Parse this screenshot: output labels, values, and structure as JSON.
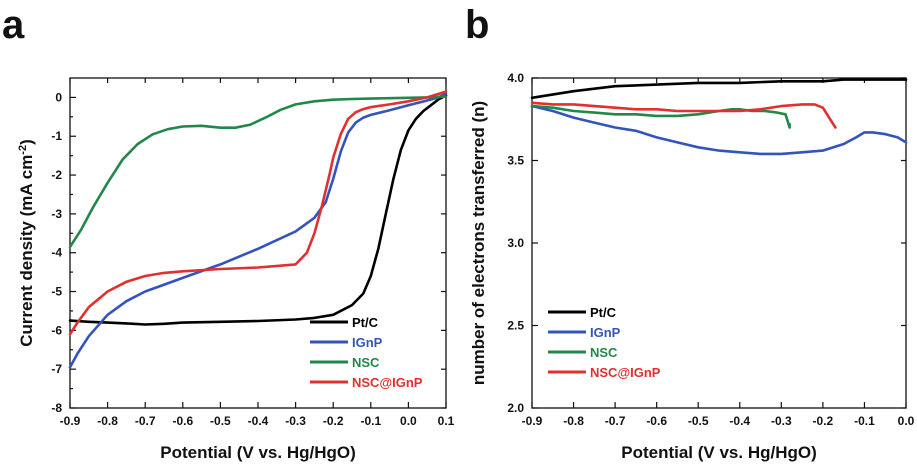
{
  "chart_data": [
    {
      "panel": "a",
      "type": "line",
      "xlabel": "Potential (V vs. Hg/HgO)",
      "ylabel": "Current density (mA cm",
      "ylabel_sup": "-2",
      "ylabel_close": ")",
      "xlim": [
        -0.9,
        0.1
      ],
      "ylim": [
        -8,
        0.5
      ],
      "xticks": [
        "-0.9",
        "-0.8",
        "-0.7",
        "-0.6",
        "-0.5",
        "-0.4",
        "-0.3",
        "-0.2",
        "-0.1",
        "0.0",
        "0.1"
      ],
      "yticks": [
        "0",
        "-1",
        "-2",
        "-3",
        "-4",
        "-5",
        "-6",
        "-7",
        "-8"
      ],
      "legend_position": "bottom-right",
      "series": [
        {
          "name": "Pt/C",
          "color": "#000000",
          "x": [
            -0.9,
            -0.85,
            -0.8,
            -0.75,
            -0.7,
            -0.65,
            -0.6,
            -0.5,
            -0.4,
            -0.3,
            -0.25,
            -0.2,
            -0.15,
            -0.12,
            -0.1,
            -0.08,
            -0.06,
            -0.04,
            -0.02,
            0.0,
            0.02,
            0.04,
            0.06,
            0.08,
            0.1
          ],
          "y": [
            -5.75,
            -5.78,
            -5.8,
            -5.82,
            -5.85,
            -5.83,
            -5.8,
            -5.78,
            -5.76,
            -5.72,
            -5.68,
            -5.6,
            -5.35,
            -5.05,
            -4.6,
            -3.9,
            -3.0,
            -2.1,
            -1.35,
            -0.85,
            -0.55,
            -0.35,
            -0.2,
            -0.05,
            0.05
          ]
        },
        {
          "name": "IGnP",
          "color": "#3355bb",
          "x": [
            -0.9,
            -0.88,
            -0.85,
            -0.8,
            -0.75,
            -0.7,
            -0.6,
            -0.5,
            -0.4,
            -0.3,
            -0.25,
            -0.22,
            -0.2,
            -0.18,
            -0.16,
            -0.14,
            -0.12,
            -0.1,
            -0.05,
            0.0,
            0.05,
            0.08,
            0.1
          ],
          "y": [
            -6.95,
            -6.6,
            -6.15,
            -5.6,
            -5.25,
            -5.0,
            -4.65,
            -4.3,
            -3.9,
            -3.45,
            -3.1,
            -2.7,
            -2.1,
            -1.4,
            -0.9,
            -0.65,
            -0.52,
            -0.45,
            -0.33,
            -0.2,
            -0.08,
            0.0,
            0.1
          ]
        },
        {
          "name": "NSC",
          "color": "#22884a",
          "x": [
            -0.9,
            -0.87,
            -0.84,
            -0.8,
            -0.76,
            -0.72,
            -0.68,
            -0.64,
            -0.6,
            -0.55,
            -0.5,
            -0.46,
            -0.42,
            -0.38,
            -0.34,
            -0.3,
            -0.25,
            -0.2,
            -0.15,
            -0.1,
            -0.05,
            0.0,
            0.05,
            0.1
          ],
          "y": [
            -3.85,
            -3.4,
            -2.85,
            -2.2,
            -1.6,
            -1.2,
            -0.95,
            -0.82,
            -0.75,
            -0.73,
            -0.78,
            -0.78,
            -0.7,
            -0.52,
            -0.32,
            -0.18,
            -0.1,
            -0.06,
            -0.04,
            -0.03,
            -0.02,
            -0.01,
            0.0,
            0.02
          ]
        },
        {
          "name": "NSC@IGnP",
          "color": "#e03030",
          "x": [
            -0.9,
            -0.88,
            -0.85,
            -0.8,
            -0.75,
            -0.7,
            -0.65,
            -0.6,
            -0.5,
            -0.4,
            -0.3,
            -0.27,
            -0.25,
            -0.23,
            -0.21,
            -0.2,
            -0.18,
            -0.16,
            -0.14,
            -0.12,
            -0.1,
            -0.05,
            0.0,
            0.05,
            0.1
          ],
          "y": [
            -6.1,
            -5.8,
            -5.4,
            -5.0,
            -4.75,
            -4.6,
            -4.52,
            -4.48,
            -4.42,
            -4.38,
            -4.3,
            -4.0,
            -3.5,
            -2.8,
            -2.0,
            -1.55,
            -0.95,
            -0.55,
            -0.38,
            -0.3,
            -0.25,
            -0.18,
            -0.1,
            0.0,
            0.15
          ]
        }
      ],
      "legend": [
        "Pt/C",
        "IGnP",
        "NSC",
        "NSC@IGnP"
      ]
    },
    {
      "panel": "b",
      "type": "line",
      "xlabel": "Potential (V vs. Hg/HgO)",
      "ylabel": "number of electrons transferred (n)",
      "xlim": [
        -0.9,
        0.0
      ],
      "ylim": [
        2.0,
        4.0
      ],
      "xticks": [
        "-0.9",
        "-0.8",
        "-0.7",
        "-0.6",
        "-0.5",
        "-0.4",
        "-0.3",
        "-0.2",
        "-0.1",
        "0.0"
      ],
      "yticks": [
        "4.0",
        "3.5",
        "3.0",
        "2.5",
        "2.0"
      ],
      "legend_position": "bottom-left",
      "series": [
        {
          "name": "Pt/C",
          "color": "#000000",
          "x": [
            -0.9,
            -0.8,
            -0.7,
            -0.6,
            -0.5,
            -0.4,
            -0.3,
            -0.2,
            -0.15,
            -0.1,
            -0.05,
            0.0
          ],
          "y": [
            3.88,
            3.92,
            3.95,
            3.96,
            3.97,
            3.97,
            3.98,
            3.98,
            3.99,
            3.99,
            3.99,
            3.99
          ]
        },
        {
          "name": "IGnP",
          "color": "#3355bb",
          "x": [
            -0.9,
            -0.85,
            -0.8,
            -0.75,
            -0.7,
            -0.65,
            -0.6,
            -0.55,
            -0.5,
            -0.45,
            -0.4,
            -0.35,
            -0.3,
            -0.25,
            -0.2,
            -0.15,
            -0.12,
            -0.1,
            -0.08,
            -0.05,
            -0.02,
            0.0
          ],
          "y": [
            3.83,
            3.8,
            3.76,
            3.73,
            3.7,
            3.68,
            3.64,
            3.61,
            3.58,
            3.56,
            3.55,
            3.54,
            3.54,
            3.55,
            3.56,
            3.6,
            3.64,
            3.67,
            3.67,
            3.66,
            3.64,
            3.61
          ]
        },
        {
          "name": "NSC",
          "color": "#22884a",
          "x": [
            -0.9,
            -0.85,
            -0.8,
            -0.75,
            -0.7,
            -0.65,
            -0.6,
            -0.55,
            -0.5,
            -0.45,
            -0.42,
            -0.4,
            -0.37,
            -0.34,
            -0.31,
            -0.29,
            -0.285,
            -0.28,
            -0.28
          ],
          "y": [
            3.83,
            3.82,
            3.8,
            3.79,
            3.78,
            3.78,
            3.77,
            3.77,
            3.78,
            3.8,
            3.81,
            3.81,
            3.8,
            3.8,
            3.79,
            3.78,
            3.74,
            3.7,
            3.72
          ]
        },
        {
          "name": "NSC@IGnP",
          "color": "#e03030",
          "x": [
            -0.9,
            -0.85,
            -0.8,
            -0.75,
            -0.7,
            -0.65,
            -0.6,
            -0.55,
            -0.5,
            -0.45,
            -0.4,
            -0.35,
            -0.3,
            -0.25,
            -0.22,
            -0.2,
            -0.18,
            -0.17
          ],
          "y": [
            3.85,
            3.84,
            3.84,
            3.83,
            3.82,
            3.81,
            3.81,
            3.8,
            3.8,
            3.8,
            3.8,
            3.81,
            3.83,
            3.84,
            3.84,
            3.82,
            3.74,
            3.7
          ]
        }
      ],
      "legend": [
        "Pt/C",
        "IGnP",
        "NSC",
        "NSC@IGnP"
      ]
    }
  ]
}
